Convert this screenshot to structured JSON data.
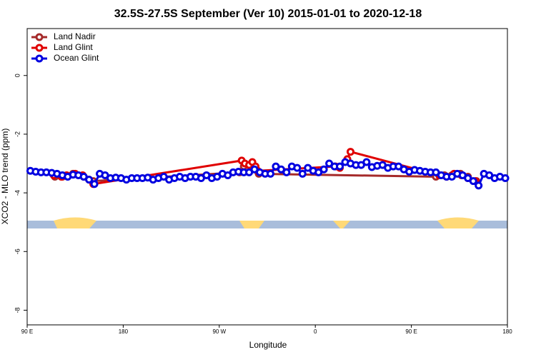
{
  "chart_data": {
    "type": "line",
    "title": "32.5S-27.5S September (Ver 10)   2015-01-01 to 2020-12-18",
    "x_label": "Longitude",
    "y_label": "XCO2 - MLO trend (ppm)",
    "xlim": [
      90,
      540
    ],
    "ylim": [
      -8.5,
      1.6
    ],
    "xticks": [
      {
        "value": 90,
        "label": "90 E"
      },
      {
        "value": 180,
        "label": "180"
      },
      {
        "value": 270,
        "label": "90 W"
      },
      {
        "value": 360,
        "label": "0"
      },
      {
        "value": 450,
        "label": "90 E"
      },
      {
        "value": 540,
        "label": "180"
      }
    ],
    "yticks": [
      0,
      -2,
      -4,
      -6,
      -8
    ],
    "legend": "top-left",
    "series": [
      {
        "name": "Land Nadir",
        "color": "#a52a2a",
        "x": [
          116,
          123,
          133,
          143,
          152,
          289,
          293,
          298,
          303,
          307,
          473,
          481,
          488,
          496,
          503,
          511
        ],
        "values": [
          -3.45,
          -3.45,
          -3.35,
          -3.45,
          -3.6,
          -3.3,
          -3.1,
          -3.05,
          -3.2,
          -3.35,
          -3.45,
          -3.4,
          -3.4,
          -3.35,
          -3.45,
          -3.6
        ]
      },
      {
        "name": "Land Glint",
        "color": "#e00000",
        "x": [
          115,
          122,
          127,
          135,
          142,
          148,
          152,
          291,
          294,
          298,
          301,
          304,
          306,
          379,
          383,
          390,
          393,
          476,
          483,
          490,
          497,
          503,
          510
        ],
        "values": [
          -3.4,
          -3.45,
          -3.4,
          -3.35,
          -3.4,
          -3.55,
          -3.7,
          -2.9,
          -3.0,
          -3.05,
          -2.95,
          -3.1,
          -3.25,
          -3.1,
          -3.15,
          -2.85,
          -2.6,
          -3.4,
          -3.45,
          -3.35,
          -3.4,
          -3.5,
          -3.6
        ]
      },
      {
        "name": "Ocean Glint",
        "color": "#0000e0",
        "x": [
          93,
          98,
          103,
          108,
          113,
          118,
          123,
          128,
          133,
          138,
          143,
          148,
          153,
          158,
          163,
          168,
          173,
          178,
          183,
          188,
          193,
          198,
          203,
          208,
          213,
          218,
          223,
          228,
          233,
          238,
          243,
          248,
          253,
          258,
          263,
          268,
          273,
          278,
          283,
          288,
          293,
          298,
          303,
          308,
          313,
          318,
          323,
          328,
          333,
          338,
          343,
          348,
          353,
          358,
          363,
          368,
          373,
          378,
          383,
          388,
          393,
          398,
          403,
          408,
          413,
          418,
          423,
          428,
          433,
          438,
          443,
          448,
          453,
          458,
          463,
          468,
          473,
          478,
          483,
          488,
          493,
          498,
          503,
          508,
          513,
          518,
          523,
          528,
          533,
          538
        ],
        "values": [
          -3.25,
          -3.28,
          -3.3,
          -3.3,
          -3.32,
          -3.35,
          -3.4,
          -3.45,
          -3.38,
          -3.4,
          -3.45,
          -3.55,
          -3.7,
          -3.35,
          -3.4,
          -3.5,
          -3.48,
          -3.5,
          -3.55,
          -3.5,
          -3.5,
          -3.5,
          -3.48,
          -3.55,
          -3.5,
          -3.45,
          -3.55,
          -3.5,
          -3.45,
          -3.5,
          -3.45,
          -3.45,
          -3.5,
          -3.4,
          -3.5,
          -3.45,
          -3.35,
          -3.4,
          -3.3,
          -3.28,
          -3.3,
          -3.3,
          -3.2,
          -3.3,
          -3.35,
          -3.35,
          -3.1,
          -3.2,
          -3.3,
          -3.1,
          -3.15,
          -3.35,
          -3.15,
          -3.25,
          -3.3,
          -3.2,
          -3.0,
          -3.1,
          -3.1,
          -2.95,
          -3.0,
          -3.05,
          -3.05,
          -2.95,
          -3.12,
          -3.08,
          -3.05,
          -3.15,
          -3.1,
          -3.1,
          -3.2,
          -3.28,
          -3.22,
          -3.25,
          -3.28,
          -3.3,
          -3.3,
          -3.4,
          -3.45,
          -3.45,
          -3.35,
          -3.4,
          -3.5,
          -3.6,
          -3.75,
          -3.35,
          -3.4,
          -3.5,
          -3.45,
          -3.5
        ]
      }
    ]
  }
}
